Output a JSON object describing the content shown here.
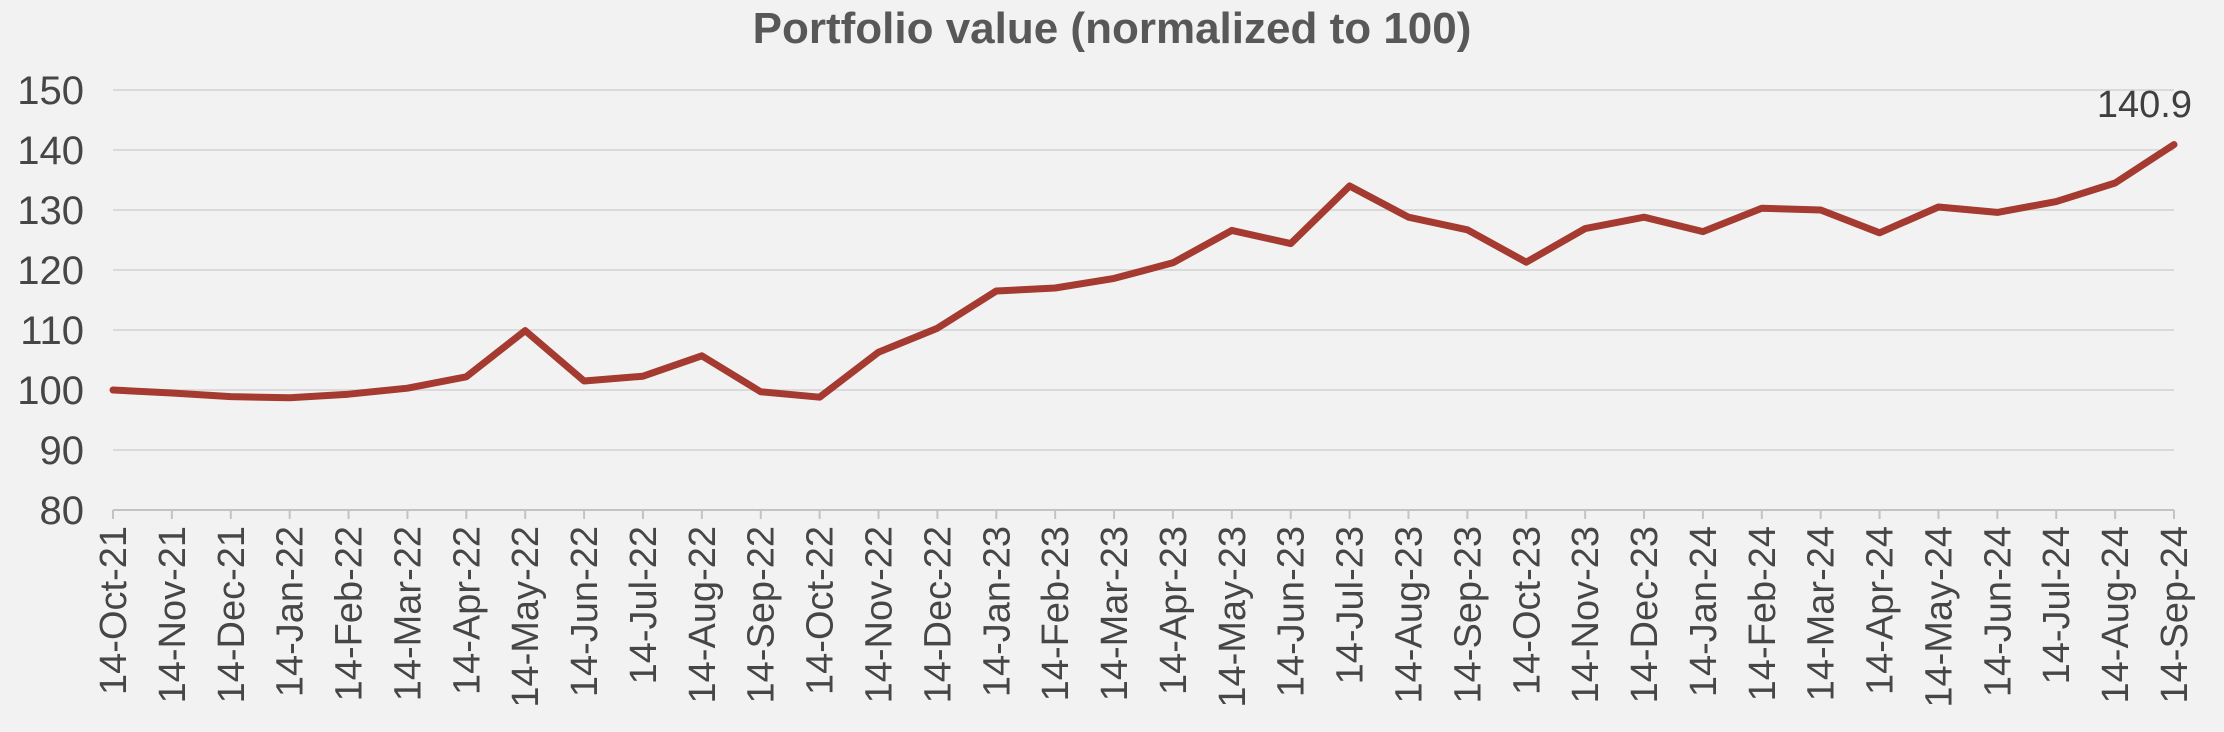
{
  "title": "Portfolio value (normalized to 100)",
  "last_point_label": "140.9",
  "colors": {
    "background": "#f2f2f2",
    "series_line": "#A43A30",
    "gridline": "#dadada",
    "axis_line": "#c3c3c3",
    "tick_mark": "#c3c3c3",
    "title_text": "#585858",
    "axis_label_text": "#464646",
    "data_label_text": "#3f3f3f"
  },
  "chart_data": {
    "type": "line",
    "title": "Portfolio value (normalized to 100)",
    "xlabel": "",
    "ylabel": "",
    "ylim": [
      80,
      150
    ],
    "ytick_step": 10,
    "y_ticks": [
      150,
      140,
      130,
      120,
      110,
      100,
      90,
      80
    ],
    "grid": "horizontal",
    "legend": "none",
    "x_label_rotation_deg": -90,
    "categories": [
      "14-Oct-21",
      "14-Nov-21",
      "14-Dec-21",
      "14-Jan-22",
      "14-Feb-22",
      "14-Mar-22",
      "14-Apr-22",
      "14-May-22",
      "14-Jun-22",
      "14-Jul-22",
      "14-Aug-22",
      "14-Sep-22",
      "14-Oct-22",
      "14-Nov-22",
      "14-Dec-22",
      "14-Jan-23",
      "14-Feb-23",
      "14-Mar-23",
      "14-Apr-23",
      "14-May-23",
      "14-Jun-23",
      "14-Jul-23",
      "14-Aug-23",
      "14-Sep-23",
      "14-Oct-23",
      "14-Nov-23",
      "14-Dec-23",
      "14-Jan-24",
      "14-Feb-24",
      "14-Mar-24",
      "14-Apr-24",
      "14-May-24",
      "14-Jun-24",
      "14-Jul-24",
      "14-Aug-24",
      "14-Sep-24"
    ],
    "values": [
      100.0,
      99.5,
      98.9,
      98.7,
      99.3,
      100.3,
      102.2,
      109.9,
      101.5,
      102.3,
      105.7,
      99.7,
      98.8,
      106.3,
      110.3,
      116.5,
      117.0,
      118.6,
      121.2,
      126.6,
      124.4,
      134.0,
      128.8,
      126.7,
      121.3,
      126.9,
      128.8,
      126.4,
      130.3,
      130.0,
      126.2,
      130.5,
      129.6,
      131.4,
      134.5,
      140.9
    ],
    "last_point_data_label": "140.9"
  }
}
